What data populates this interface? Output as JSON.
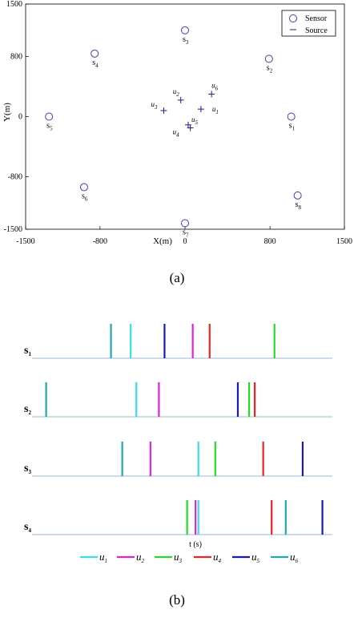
{
  "panel_a": {
    "caption": "(a)",
    "legend": {
      "sensor": "Sensor",
      "source": "Source"
    },
    "xlabel": "X(m)",
    "ylabel": "Y(m)",
    "xticks": [
      -1500,
      -800,
      0,
      800,
      1500
    ],
    "yticks": [
      1500,
      800,
      0,
      -800,
      -1500
    ]
  },
  "panel_b": {
    "caption": "(b)",
    "xlabel": "t (s)"
  },
  "chart_data": [
    {
      "type": "scatter",
      "xlim": [
        -1500,
        1500
      ],
      "ylim": [
        -1500,
        1500
      ],
      "xlabel": "X(m)",
      "ylabel": "Y(m)",
      "legend_position": "top-right",
      "series": [
        {
          "name": "Sensor",
          "marker": "circle",
          "color": "#3a3ad8",
          "points": [
            {
              "label": "s",
              "sub": "1",
              "x": 1000,
              "y": 0
            },
            {
              "label": "s",
              "sub": "2",
              "x": 790,
              "y": 770
            },
            {
              "label": "s",
              "sub": "3",
              "x": 0,
              "y": 1150
            },
            {
              "label": "s",
              "sub": "4",
              "x": -850,
              "y": 840
            },
            {
              "label": "s",
              "sub": "5",
              "x": -1280,
              "y": 0
            },
            {
              "label": "s",
              "sub": "6",
              "x": -950,
              "y": -940
            },
            {
              "label": "s",
              "sub": "7",
              "x": 0,
              "y": -1420
            },
            {
              "label": "s",
              "sub": "8",
              "x": 1060,
              "y": -1050
            }
          ]
        },
        {
          "name": "Source",
          "marker": "plus",
          "color": "#1a1a9e",
          "points": [
            {
              "label": "u",
              "sub": "1",
              "x": 150,
              "y": 100
            },
            {
              "label": "u",
              "sub": "2",
              "x": -40,
              "y": 220
            },
            {
              "label": "u",
              "sub": "3",
              "x": -200,
              "y": 80
            },
            {
              "label": "u",
              "sub": "4",
              "x": 50,
              "y": -150
            },
            {
              "label": "u",
              "sub": "5",
              "x": 30,
              "y": -110
            },
            {
              "label": "u",
              "sub": "6",
              "x": 250,
              "y": 300
            }
          ]
        }
      ]
    },
    {
      "type": "event-raster",
      "xlabel": "t (s)",
      "rows": [
        "s1",
        "s2",
        "s3",
        "s4"
      ],
      "series": [
        {
          "name": "u1",
          "color": "#33ddee",
          "times": [
            0.35,
            0.37,
            0.59,
            0.59
          ]
        },
        {
          "name": "u2",
          "color": "#dd22dd",
          "times": [
            0.57,
            0.45,
            0.42,
            0.58
          ]
        },
        {
          "name": "u3",
          "color": "#22dd22",
          "times": [
            0.86,
            0.77,
            0.65,
            0.55
          ]
        },
        {
          "name": "u4",
          "color": "#ee2222",
          "times": [
            0.63,
            0.79,
            0.82,
            0.85
          ]
        },
        {
          "name": "u5",
          "color": "#1a1ab0",
          "times": [
            0.47,
            0.73,
            0.96,
            1.03
          ]
        },
        {
          "name": "u6",
          "color": "#22aaaa",
          "times": [
            0.28,
            0.05,
            0.32,
            0.9
          ]
        }
      ]
    }
  ]
}
